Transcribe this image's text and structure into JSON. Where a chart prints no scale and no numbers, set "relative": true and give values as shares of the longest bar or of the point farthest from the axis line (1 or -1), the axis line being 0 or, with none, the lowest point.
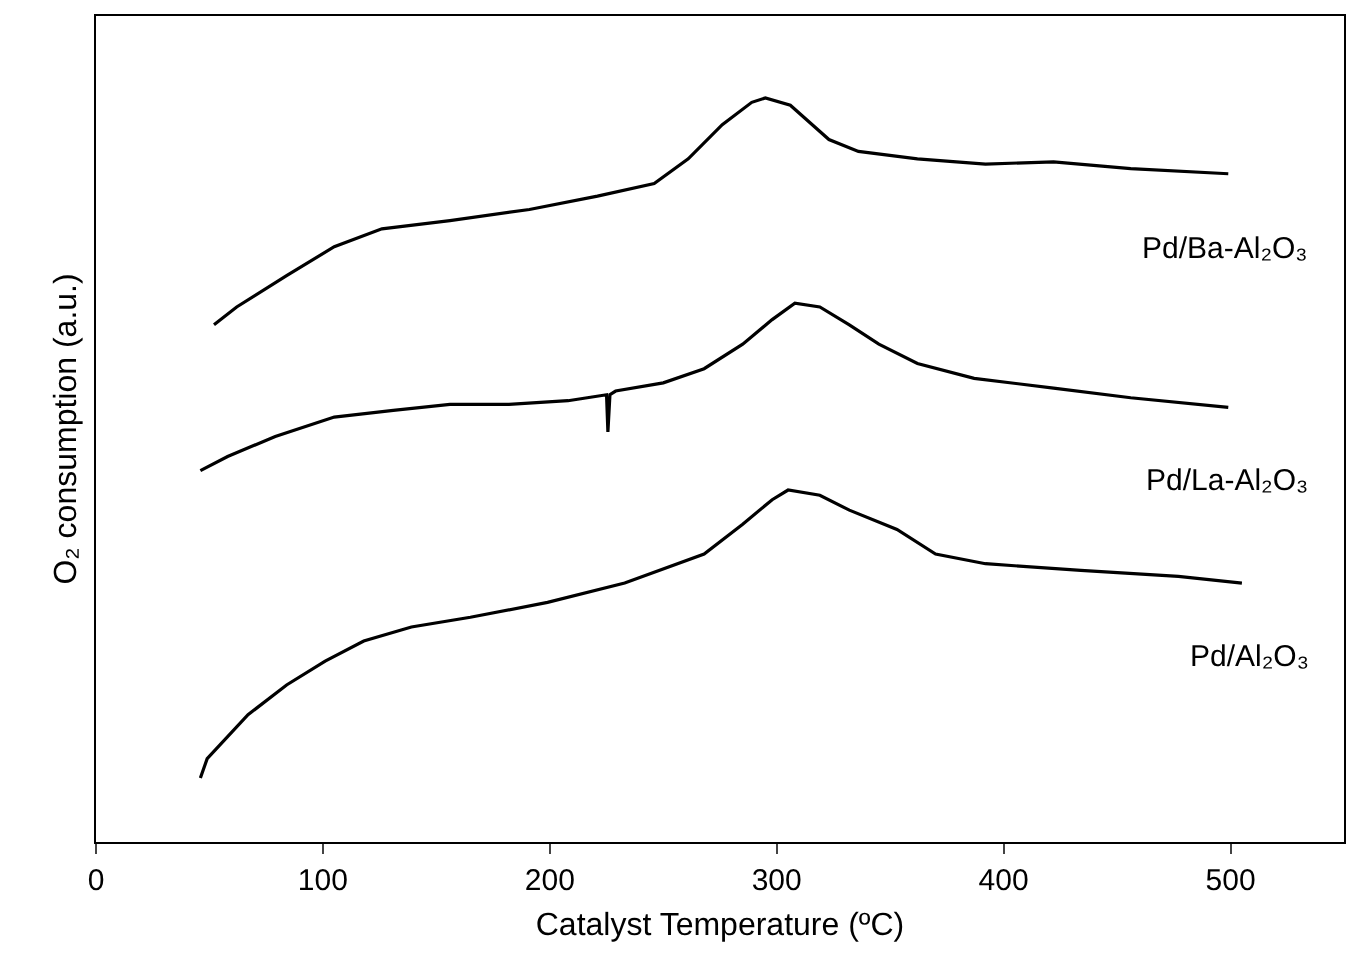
{
  "chart_data": {
    "type": "line",
    "xlabel": "Catalyst Temperature (ºC)",
    "ylabel": "O₂ consumption (a.u.)",
    "relative": true,
    "xlim": [
      0,
      550
    ],
    "xticks": [
      0,
      100,
      200,
      300,
      400,
      500
    ],
    "grid": false,
    "legend": false,
    "marker": "none",
    "line_style": "solid",
    "series": [
      {
        "name": "Pd/Ba-Al₂O₃",
        "color": "#000000",
        "x": [
          52,
          62,
          84,
          105,
          126,
          156,
          191,
          221,
          246,
          261,
          276,
          289,
          295,
          306,
          323,
          336,
          362,
          392,
          422,
          456,
          499
        ],
        "values": [
          0.695,
          0.719,
          0.761,
          0.8,
          0.824,
          0.835,
          0.85,
          0.868,
          0.885,
          0.918,
          0.964,
          0.994,
          1,
          0.99,
          0.944,
          0.928,
          0.918,
          0.911,
          0.914,
          0.905,
          0.898
        ]
      },
      {
        "name": "Pd/La-Al₂O₃",
        "color": "#000000",
        "x": [
          46,
          58,
          79,
          105,
          131,
          156,
          182,
          208,
          225,
          225.6,
          226.5,
          229,
          250,
          268,
          285,
          298,
          308,
          319,
          332,
          345,
          362,
          387,
          422,
          456,
          499
        ],
        "values": [
          0.499,
          0.518,
          0.545,
          0.571,
          0.58,
          0.588,
          0.588,
          0.593,
          0.601,
          0.551,
          0.601,
          0.606,
          0.617,
          0.636,
          0.669,
          0.702,
          0.724,
          0.719,
          0.695,
          0.669,
          0.643,
          0.623,
          0.61,
          0.597,
          0.584
        ]
      },
      {
        "name": "Pd/Al₂O₃",
        "color": "#000000",
        "x": [
          46,
          49,
          67,
          84,
          101,
          118,
          139,
          165,
          199,
          233,
          268,
          285,
          298,
          305,
          319,
          332,
          353,
          370,
          392,
          434,
          477,
          505
        ],
        "values": [
          0.086,
          0.112,
          0.171,
          0.211,
          0.243,
          0.27,
          0.289,
          0.302,
          0.322,
          0.348,
          0.387,
          0.427,
          0.46,
          0.473,
          0.466,
          0.446,
          0.42,
          0.387,
          0.374,
          0.365,
          0.357,
          0.348
        ]
      }
    ]
  }
}
